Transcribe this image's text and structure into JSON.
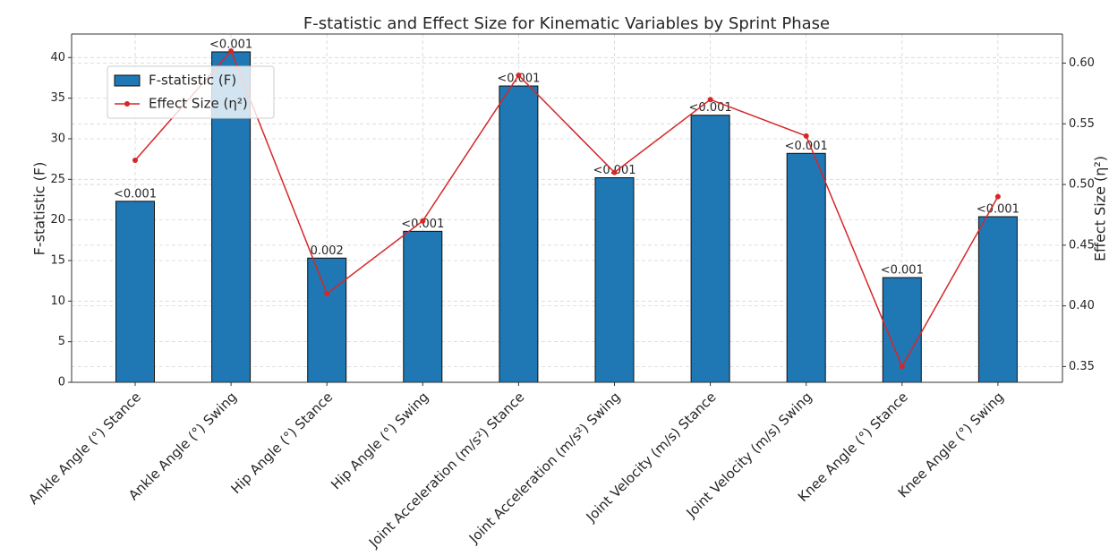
{
  "chart_data": {
    "type": "bar_line",
    "title": "F-statistic and Effect Size for Kinematic Variables by Sprint Phase",
    "ylabel": "F-statistic (F)",
    "y2label": "Effect Size (η²)",
    "categories": [
      "Ankle Angle (°) Stance",
      "Ankle Angle (°) Swing",
      "Hip Angle (°) Stance",
      "Hip Angle (°) Swing",
      "Joint Acceleration (m/s²) Stance",
      "Joint Acceleration (m/s²) Swing",
      "Joint Velocity (m/s) Stance",
      "Joint Velocity (m/s) Swing",
      "Knee Angle (°) Stance",
      "Knee Angle (°) Swing"
    ],
    "series": [
      {
        "name": "F-statistic (F)",
        "type": "bar",
        "color": "#1f77b4",
        "values": [
          22.3,
          40.7,
          15.3,
          18.6,
          36.5,
          25.2,
          32.9,
          28.2,
          12.9,
          20.4
        ]
      },
      {
        "name": "Effect Size (η²)",
        "type": "line",
        "color": "#d62728",
        "axis": "y2",
        "values": [
          0.52,
          0.61,
          0.41,
          0.47,
          0.59,
          0.51,
          0.57,
          0.54,
          0.35,
          0.49
        ]
      }
    ],
    "annotations": [
      "<0.001",
      "<0.001",
      "0.002",
      "<0.001",
      "<0.001",
      "<0.001",
      "<0.001",
      "<0.001",
      "<0.001",
      "<0.001"
    ],
    "ylim": [
      0,
      42.9
    ],
    "yticks": [
      0,
      5,
      10,
      15,
      20,
      25,
      30,
      35,
      40
    ],
    "y2lim": [
      0.337,
      0.624
    ],
    "y2ticks": [
      0.35,
      {
        "value": 0.4,
        "label": "0.40"
      },
      0.45,
      {
        "value": 0.5,
        "label": "0.50"
      },
      0.55,
      {
        "value": 0.6,
        "label": "0.60"
      }
    ],
    "grid": true,
    "legend": "upper left"
  }
}
